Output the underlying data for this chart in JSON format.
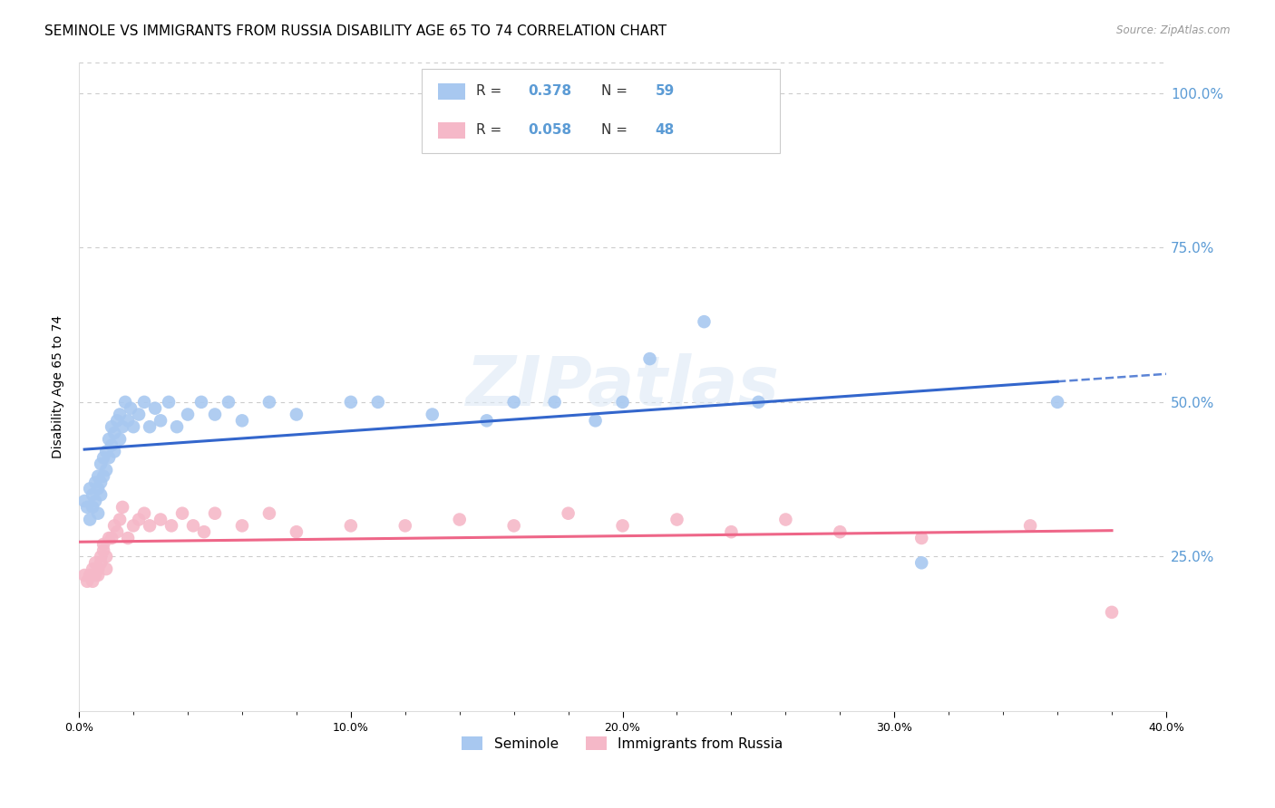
{
  "title": "SEMINOLE VS IMMIGRANTS FROM RUSSIA DISABILITY AGE 65 TO 74 CORRELATION CHART",
  "source": "Source: ZipAtlas.com",
  "ylabel": "Disability Age 65 to 74",
  "xlim": [
    0.0,
    0.4
  ],
  "ylim": [
    0.0,
    1.05
  ],
  "xtick_labels": [
    "0.0%",
    "",
    "",
    "",
    "10.0%",
    "",
    "",
    "",
    "",
    "20.0%",
    "",
    "",
    "",
    "",
    "30.0%",
    "",
    "",
    "",
    "",
    "40.0%"
  ],
  "ytick_labels": [
    "25.0%",
    "50.0%",
    "75.0%",
    "100.0%"
  ],
  "ytick_values": [
    0.25,
    0.5,
    0.75,
    1.0
  ],
  "seminole_color": "#a8c8f0",
  "russia_color": "#f5b8c8",
  "seminole_line_color": "#3366cc",
  "russia_line_color": "#ee6688",
  "legend_R1": "0.378",
  "legend_N1": "59",
  "legend_R2": "0.058",
  "legend_N2": "48",
  "legend_label1": "Seminole",
  "legend_label2": "Immigrants from Russia",
  "watermark": "ZIPatlas",
  "seminole_x": [
    0.002,
    0.003,
    0.004,
    0.004,
    0.005,
    0.005,
    0.006,
    0.006,
    0.007,
    0.007,
    0.007,
    0.008,
    0.008,
    0.008,
    0.009,
    0.009,
    0.01,
    0.01,
    0.011,
    0.011,
    0.012,
    0.012,
    0.013,
    0.013,
    0.014,
    0.015,
    0.015,
    0.016,
    0.017,
    0.018,
    0.019,
    0.02,
    0.022,
    0.024,
    0.026,
    0.028,
    0.03,
    0.033,
    0.036,
    0.04,
    0.045,
    0.05,
    0.055,
    0.06,
    0.07,
    0.08,
    0.1,
    0.11,
    0.13,
    0.15,
    0.16,
    0.175,
    0.19,
    0.2,
    0.21,
    0.23,
    0.25,
    0.31,
    0.36
  ],
  "seminole_y": [
    0.34,
    0.33,
    0.36,
    0.31,
    0.33,
    0.35,
    0.37,
    0.34,
    0.38,
    0.36,
    0.32,
    0.4,
    0.37,
    0.35,
    0.41,
    0.38,
    0.42,
    0.39,
    0.44,
    0.41,
    0.43,
    0.46,
    0.45,
    0.42,
    0.47,
    0.44,
    0.48,
    0.46,
    0.5,
    0.47,
    0.49,
    0.46,
    0.48,
    0.5,
    0.46,
    0.49,
    0.47,
    0.5,
    0.46,
    0.48,
    0.5,
    0.48,
    0.5,
    0.47,
    0.5,
    0.48,
    0.5,
    0.5,
    0.48,
    0.47,
    0.5,
    0.5,
    0.47,
    0.5,
    0.57,
    0.63,
    0.5,
    0.24,
    0.5
  ],
  "russia_x": [
    0.002,
    0.003,
    0.004,
    0.005,
    0.005,
    0.006,
    0.006,
    0.007,
    0.007,
    0.008,
    0.008,
    0.009,
    0.009,
    0.01,
    0.01,
    0.011,
    0.012,
    0.013,
    0.014,
    0.015,
    0.016,
    0.018,
    0.02,
    0.022,
    0.024,
    0.026,
    0.03,
    0.034,
    0.038,
    0.042,
    0.046,
    0.05,
    0.06,
    0.07,
    0.08,
    0.1,
    0.12,
    0.14,
    0.16,
    0.18,
    0.2,
    0.22,
    0.24,
    0.26,
    0.28,
    0.31,
    0.35,
    0.38
  ],
  "russia_y": [
    0.22,
    0.21,
    0.22,
    0.23,
    0.21,
    0.22,
    0.24,
    0.23,
    0.22,
    0.25,
    0.24,
    0.26,
    0.27,
    0.25,
    0.23,
    0.28,
    0.28,
    0.3,
    0.29,
    0.31,
    0.33,
    0.28,
    0.3,
    0.31,
    0.32,
    0.3,
    0.31,
    0.3,
    0.32,
    0.3,
    0.29,
    0.32,
    0.3,
    0.32,
    0.29,
    0.3,
    0.3,
    0.31,
    0.3,
    0.32,
    0.3,
    0.31,
    0.29,
    0.31,
    0.29,
    0.28,
    0.3,
    0.16
  ],
  "background_color": "#ffffff",
  "grid_color": "#cccccc",
  "title_fontsize": 11,
  "axis_label_fontsize": 10,
  "tick_fontsize": 9,
  "tick_color": "#5b9bd5"
}
